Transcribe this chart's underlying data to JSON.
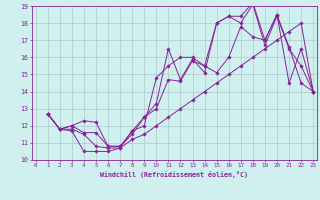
{
  "xlabel": "Windchill (Refroidissement éolien,°C)",
  "bg_color": "#cff0ee",
  "grid_color": "#b0c8cc",
  "line_color": "#882299",
  "xmin": 0,
  "xmax": 23,
  "ymin": 10,
  "ymax": 19,
  "series": [
    {
      "x": [
        1,
        2,
        3,
        4,
        5,
        6,
        7,
        8,
        9,
        10,
        11,
        12,
        13,
        14,
        15,
        16,
        17,
        18,
        19,
        20,
        21,
        22,
        23
      ],
      "y": [
        12.7,
        11.8,
        11.7,
        10.5,
        10.5,
        10.5,
        10.7,
        11.7,
        12.5,
        13.3,
        16.5,
        14.7,
        15.9,
        15.1,
        18.0,
        18.4,
        18.0,
        19.1,
        16.7,
        18.4,
        16.5,
        15.5,
        14.0
      ]
    },
    {
      "x": [
        1,
        2,
        3,
        4,
        5,
        6,
        7,
        8,
        9,
        10,
        11,
        12,
        13,
        14,
        15,
        16,
        17,
        18,
        19,
        20,
        21,
        22,
        23
      ],
      "y": [
        12.7,
        11.8,
        12.0,
        11.6,
        11.6,
        10.8,
        10.8,
        11.7,
        12.0,
        14.8,
        15.5,
        16.0,
        16.0,
        15.5,
        18.0,
        18.4,
        18.4,
        19.2,
        17.0,
        18.5,
        14.5,
        16.5,
        14.0
      ]
    },
    {
      "x": [
        1,
        2,
        3,
        4,
        5,
        6,
        7,
        8,
        9,
        10,
        11,
        12,
        13,
        14,
        15,
        16,
        17,
        18,
        19,
        20,
        21,
        22,
        23
      ],
      "y": [
        12.7,
        11.8,
        12.0,
        12.3,
        12.2,
        10.8,
        10.8,
        11.5,
        12.5,
        13.0,
        14.7,
        14.6,
        15.8,
        15.5,
        15.1,
        16.0,
        17.8,
        17.2,
        17.0,
        18.5,
        16.6,
        14.5,
        14.0
      ]
    },
    {
      "x": [
        1,
        2,
        3,
        4,
        5,
        6,
        7,
        8,
        9,
        10,
        11,
        12,
        13,
        14,
        15,
        16,
        17,
        18,
        19,
        20,
        21,
        22,
        23
      ],
      "y": [
        12.7,
        11.8,
        11.8,
        11.5,
        10.8,
        10.7,
        10.7,
        11.2,
        11.5,
        12.0,
        12.5,
        13.0,
        13.5,
        14.0,
        14.5,
        15.0,
        15.5,
        16.0,
        16.5,
        17.0,
        17.5,
        18.0,
        14.0
      ]
    }
  ]
}
